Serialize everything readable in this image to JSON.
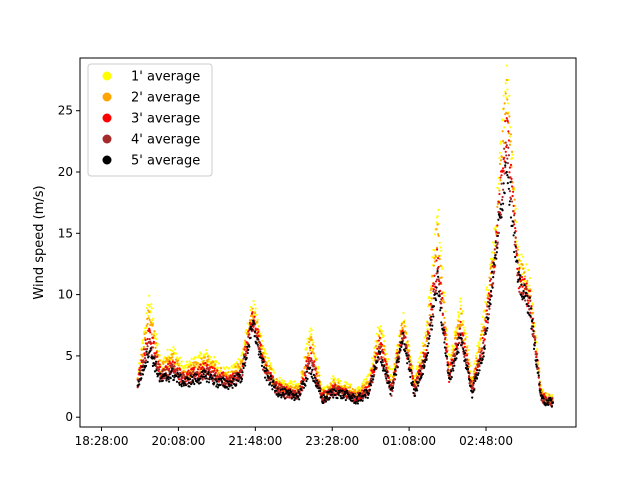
{
  "chart_data": {
    "type": "scatter",
    "title": "",
    "xlabel": "",
    "ylabel": "Wind speed (m/s)",
    "x_start": "19:15:00",
    "x_end": "04:15:00",
    "xlim": [
      "18:00:00",
      "04:45:00"
    ],
    "ylim": [
      -0.8,
      29.3
    ],
    "x_ticks": [
      "18:28:00",
      "20:08:00",
      "21:48:00",
      "23:28:00",
      "01:08:00",
      "02:48:00"
    ],
    "y_ticks": [
      0,
      5,
      10,
      15,
      20,
      25
    ],
    "grid": false,
    "legend_position": "upper-left",
    "x": [
      "19:15",
      "19:30",
      "19:45",
      "20:00",
      "20:15",
      "20:30",
      "20:45",
      "21:00",
      "21:15",
      "21:30",
      "21:45",
      "22:00",
      "22:15",
      "22:30",
      "22:45",
      "23:00",
      "23:15",
      "23:30",
      "23:45",
      "00:00",
      "00:15",
      "00:30",
      "00:45",
      "01:00",
      "01:15",
      "01:30",
      "01:45",
      "02:00",
      "02:15",
      "02:30",
      "02:45",
      "03:00",
      "03:15",
      "03:30",
      "03:45",
      "04:00",
      "04:15"
    ],
    "series": [
      {
        "name": "1' average",
        "color": "#ffff00",
        "values": [
          3.0,
          9.5,
          4.2,
          5.5,
          3.8,
          4.5,
          5.0,
          4.0,
          3.5,
          4.8,
          9.0,
          5.0,
          3.0,
          2.5,
          2.5,
          7.0,
          2.0,
          3.0,
          2.5,
          2.0,
          3.0,
          7.5,
          3.0,
          8.0,
          3.0,
          6.5,
          17.0,
          4.0,
          9.0,
          3.0,
          8.0,
          15.0,
          28.5,
          13.0,
          11.0,
          2.0,
          1.5
        ]
      },
      {
        "name": "2' average",
        "color": "#ffa500",
        "values": [
          3.0,
          8.5,
          3.8,
          4.8,
          3.5,
          4.0,
          4.5,
          3.6,
          3.2,
          4.3,
          8.6,
          4.6,
          2.7,
          2.2,
          2.2,
          6.2,
          1.8,
          2.6,
          2.2,
          1.8,
          2.6,
          6.8,
          2.6,
          7.6,
          2.6,
          6.0,
          15.0,
          3.6,
          8.2,
          2.6,
          7.2,
          14.2,
          27.0,
          12.2,
          10.2,
          1.8,
          1.3
        ]
      },
      {
        "name": "3' average",
        "color": "#ff0000",
        "values": [
          2.8,
          7.0,
          3.5,
          4.2,
          3.2,
          3.6,
          4.0,
          3.3,
          3.0,
          3.8,
          8.2,
          4.2,
          2.5,
          2.0,
          2.0,
          5.2,
          1.6,
          2.3,
          2.0,
          1.6,
          2.3,
          6.0,
          2.3,
          7.0,
          2.3,
          5.4,
          13.0,
          3.3,
          7.2,
          2.3,
          6.3,
          13.5,
          24.0,
          11.5,
          9.5,
          1.6,
          1.2
        ]
      },
      {
        "name": "4' average",
        "color": "#a52a2a",
        "values": [
          2.7,
          6.0,
          3.2,
          3.8,
          3.0,
          3.3,
          3.6,
          3.0,
          2.8,
          3.5,
          7.8,
          3.9,
          2.3,
          1.9,
          1.9,
          4.5,
          1.5,
          2.1,
          1.9,
          1.5,
          2.1,
          5.5,
          2.1,
          6.8,
          2.1,
          5.0,
          12.0,
          3.1,
          6.8,
          2.1,
          5.8,
          13.2,
          22.5,
          11.2,
          9.2,
          1.5,
          1.2
        ]
      },
      {
        "name": "5' average",
        "color": "#000000",
        "values": [
          2.6,
          5.5,
          3.0,
          3.5,
          2.8,
          3.1,
          3.4,
          2.8,
          2.7,
          3.3,
          7.5,
          3.7,
          2.2,
          1.8,
          1.8,
          4.0,
          1.4,
          2.0,
          1.8,
          1.4,
          2.0,
          5.2,
          2.0,
          6.5,
          2.0,
          4.7,
          11.0,
          3.0,
          6.5,
          2.0,
          5.5,
          13.0,
          21.0,
          11.0,
          9.0,
          1.4,
          1.2
        ]
      }
    ]
  }
}
